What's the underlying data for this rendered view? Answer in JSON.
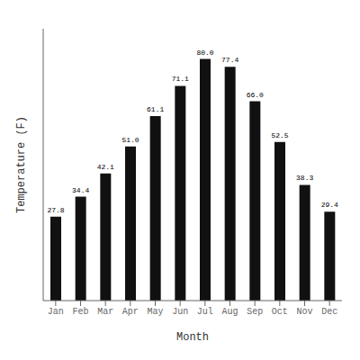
{
  "chart_data": {
    "type": "bar",
    "categories": [
      "Jan",
      "Feb",
      "Mar",
      "Apr",
      "May",
      "Jun",
      "Jul",
      "Aug",
      "Sep",
      "Oct",
      "Nov",
      "Dec"
    ],
    "values": [
      27.8,
      34.4,
      42.1,
      51.0,
      61.1,
      71.1,
      80.0,
      77.4,
      66.0,
      52.5,
      38.3,
      29.4
    ],
    "value_labels": [
      "27.8",
      "34.4",
      "42.1",
      "51.0",
      "61.1",
      "71.1",
      "80.0",
      "77.4",
      "66.0",
      "52.5",
      "38.3",
      "29.4"
    ],
    "color": "#111111",
    "xlabel": "Month",
    "ylabel": "Temperature (F)",
    "ylim": [
      0,
      90
    ],
    "grid": false,
    "data_labels": true,
    "tick_labels": "x"
  }
}
